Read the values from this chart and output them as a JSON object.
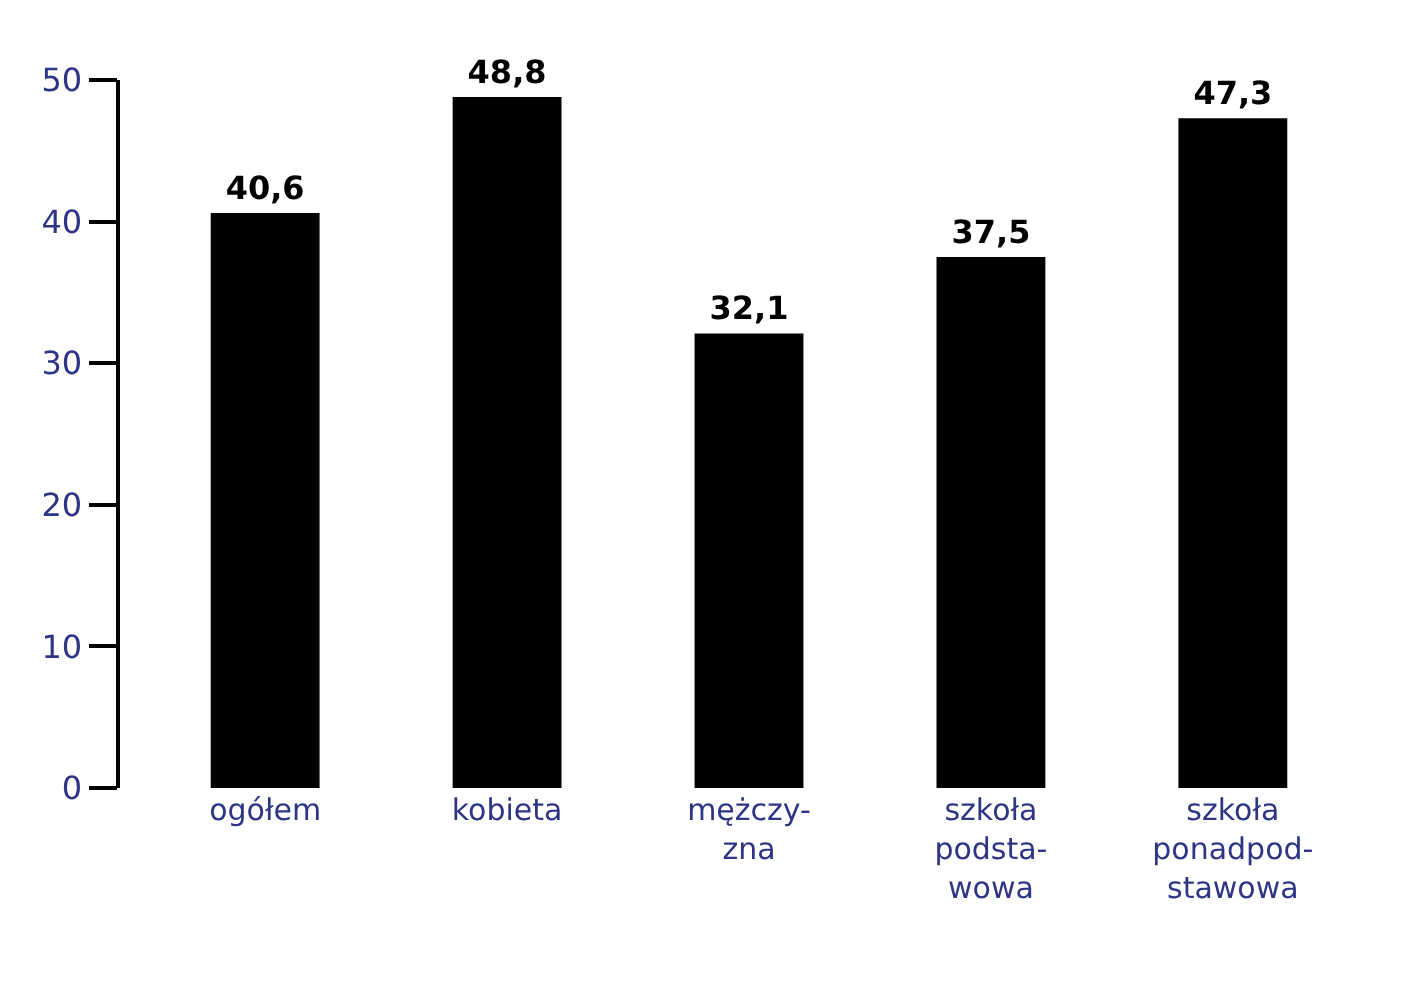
{
  "chart_data": {
    "type": "bar",
    "categories": [
      "ogółem",
      "kobieta",
      "mężczy-\nzna",
      "szkoła\npodsta-\nwowa",
      "szkoła\nponadpod-\nstawowa"
    ],
    "values": [
      40.6,
      48.8,
      32.1,
      37.5,
      47.3
    ],
    "value_labels": [
      "40,6",
      "48,8",
      "32,1",
      "37,5",
      "47,3"
    ],
    "color": "#000000",
    "ylim": [
      0,
      50
    ],
    "yticks": [
      0,
      10,
      20,
      30,
      40,
      50
    ]
  }
}
